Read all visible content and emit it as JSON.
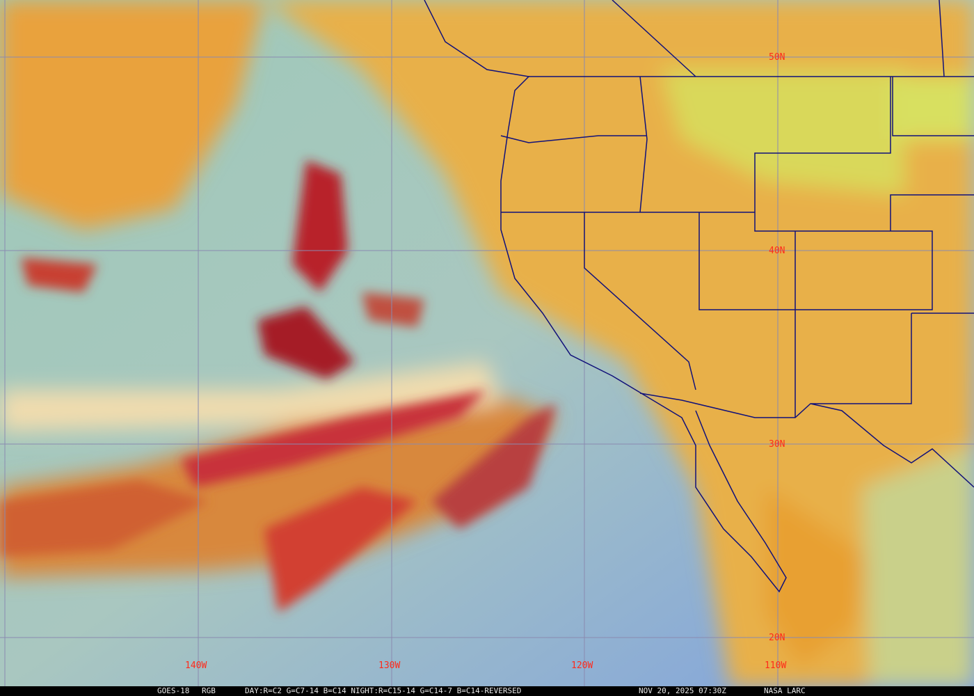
{
  "image": {
    "satellite": "GOES-18",
    "product": "RGB",
    "recipe": "DAY:R=C2 G=C7-14 B=C14 NIGHT:R=C15-14 G=C14-7 B=C14-REVERSED",
    "timestamp": "NOV 20, 2025 07:30Z",
    "credit": "NASA LARC"
  },
  "grid": {
    "latitudes": [
      "50N",
      "40N",
      "30N",
      "20N"
    ],
    "longitudes": [
      "140W",
      "130W",
      "120W",
      "110W"
    ],
    "grid_color": "#8a8ab0",
    "label_color": "#ff2a1a",
    "boundary_color": "#10107a"
  }
}
